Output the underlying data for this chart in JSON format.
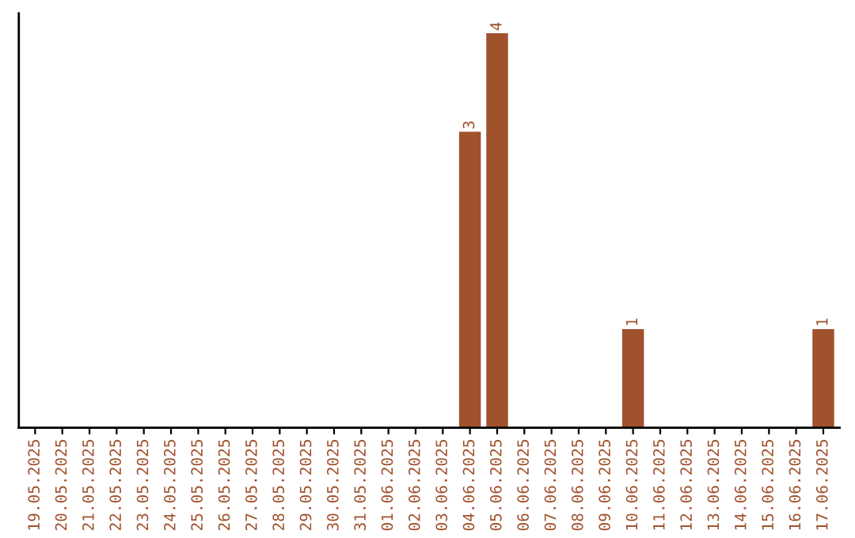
{
  "chart_data": {
    "type": "bar",
    "categories": [
      "19.05.2025",
      "20.05.2025",
      "21.05.2025",
      "22.05.2025",
      "23.05.2025",
      "24.05.2025",
      "25.05.2025",
      "26.05.2025",
      "27.05.2025",
      "28.05.2025",
      "29.05.2025",
      "30.05.2025",
      "31.05.2025",
      "01.06.2025",
      "02.06.2025",
      "03.06.2025",
      "04.06.2025",
      "05.06.2025",
      "06.06.2025",
      "07.06.2025",
      "08.06.2025",
      "09.06.2025",
      "10.06.2025",
      "11.06.2025",
      "12.06.2025",
      "13.06.2025",
      "14.06.2025",
      "15.06.2025",
      "16.06.2025",
      "17.06.2025"
    ],
    "values": [
      null,
      null,
      null,
      null,
      null,
      null,
      null,
      null,
      null,
      null,
      null,
      null,
      null,
      null,
      null,
      null,
      3,
      4,
      null,
      null,
      null,
      null,
      1,
      null,
      null,
      null,
      null,
      null,
      null,
      1
    ],
    "data_labels": true,
    "color": "#a0522d",
    "tick_labels": "x",
    "grid": false,
    "legend": false
  }
}
